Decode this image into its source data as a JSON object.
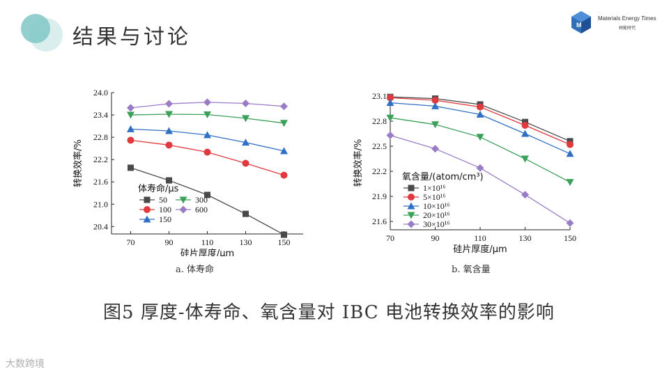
{
  "slide": {
    "title": "结果与讨论",
    "logo_text": "Materials Energy Times",
    "logo_subtext": "材能时代",
    "figure_title": "图5    厚度-体寿命、氧含量对 IBC 电池转换效率的影响",
    "watermark": "大数跨境"
  },
  "chart_data": [
    {
      "type": "line",
      "caption": "a. 体寿命",
      "xlabel": "硅片厚度/μm",
      "ylabel": "转换效率/%",
      "x": [
        70,
        90,
        110,
        130,
        150
      ],
      "xlim": [
        60,
        160
      ],
      "ylim": [
        20.2,
        24.0
      ],
      "yticks": [
        20.4,
        21.0,
        21.6,
        22.2,
        22.8,
        23.4,
        24.0
      ],
      "ytick_labels": [
        "20.4",
        "21.0",
        "21.6",
        "22.2",
        "22.8",
        "23.4",
        "24.0"
      ],
      "legend_title": "体寿命/μs",
      "legend_position": "bottom-left",
      "series": [
        {
          "name": "50",
          "marker": "square",
          "color": "#4a4a4a",
          "values": [
            21.98,
            21.64,
            21.25,
            20.74,
            20.18
          ]
        },
        {
          "name": "100",
          "marker": "circle",
          "color": "#e0393e",
          "values": [
            22.72,
            22.59,
            22.4,
            22.1,
            21.78
          ]
        },
        {
          "name": "150",
          "marker": "triangle-up",
          "color": "#2f6fc4",
          "values": [
            23.02,
            22.97,
            22.86,
            22.66,
            22.43
          ]
        },
        {
          "name": "300",
          "marker": "triangle-down",
          "color": "#3aa05a",
          "values": [
            23.4,
            23.42,
            23.41,
            23.31,
            23.18
          ]
        },
        {
          "name": "600",
          "marker": "diamond",
          "color": "#9a7cc6",
          "values": [
            23.59,
            23.7,
            23.74,
            23.71,
            23.63
          ]
        }
      ]
    },
    {
      "type": "line",
      "caption": "b. 氧含量",
      "xlabel": "硅片厚度/μm",
      "ylabel": "转换效率/%",
      "x": [
        70,
        90,
        110,
        130,
        150
      ],
      "xlim": [
        70,
        150
      ],
      "ylim": [
        21.5,
        23.1
      ],
      "yticks": [
        21.6,
        21.9,
        22.2,
        22.5,
        22.8,
        23.1
      ],
      "ytick_labels": [
        "21.6",
        "21.9",
        "22.2",
        "22.5",
        "22.8",
        "23.1"
      ],
      "legend_title": "氧含量/(atom/cm³)",
      "legend_position": "lower-left",
      "series": [
        {
          "name": "1×10¹⁶",
          "marker": "square",
          "color": "#4a4a4a",
          "values": [
            23.09,
            23.07,
            23.0,
            22.79,
            22.56
          ]
        },
        {
          "name": "5×10¹⁶",
          "marker": "circle",
          "color": "#e0393e",
          "values": [
            23.08,
            23.05,
            22.97,
            22.75,
            22.52
          ]
        },
        {
          "name": "10×10¹⁶",
          "marker": "triangle-up",
          "color": "#2f6fc4",
          "values": [
            23.02,
            22.98,
            22.88,
            22.65,
            22.41
          ]
        },
        {
          "name": "20×10¹⁶",
          "marker": "triangle-down",
          "color": "#3aa05a",
          "values": [
            22.84,
            22.76,
            22.61,
            22.35,
            22.07
          ]
        },
        {
          "name": "30×10¹⁶",
          "marker": "diamond",
          "color": "#9a7cc6",
          "values": [
            22.63,
            22.47,
            22.24,
            21.92,
            21.58
          ]
        }
      ]
    }
  ]
}
